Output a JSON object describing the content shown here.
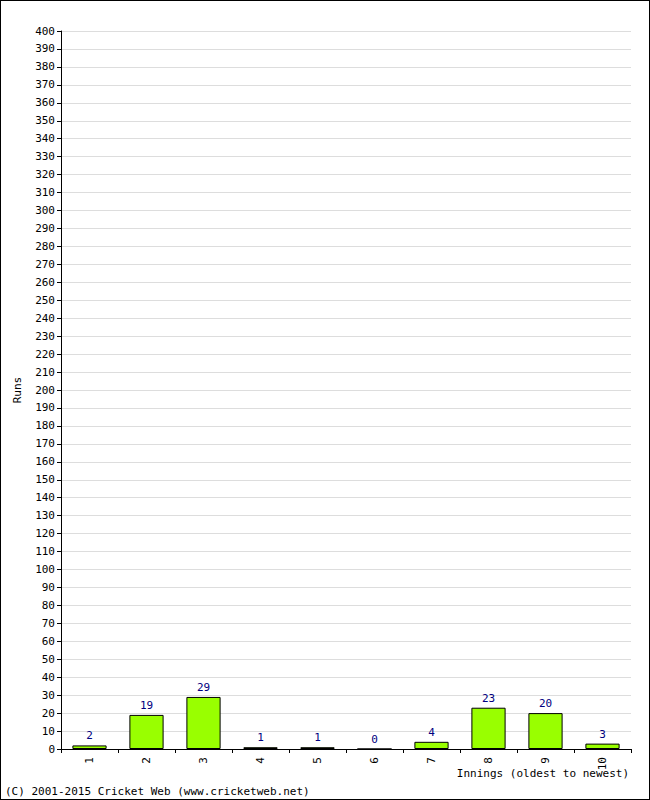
{
  "chart_data": {
    "type": "bar",
    "categories": [
      "1",
      "2",
      "3",
      "4",
      "5",
      "6",
      "7",
      "8",
      "9",
      "10"
    ],
    "values": [
      2,
      19,
      29,
      1,
      1,
      0,
      4,
      23,
      20,
      3
    ],
    "color": "#99ff00",
    "y_label": "Runs",
    "x_label": "Innings (oldest to newest)",
    "annotation": "(C) 2001-2015 Cricket Web (www.cricketweb.net)",
    "ylim": [
      0,
      400
    ],
    "yticks": [
      0,
      10,
      20,
      30,
      40,
      50,
      60,
      70,
      80,
      90,
      100,
      110,
      120,
      130,
      140,
      150,
      160,
      170,
      180,
      190,
      200,
      210,
      220,
      230,
      240,
      250,
      260,
      270,
      280,
      290,
      300,
      310,
      320,
      330,
      340,
      350,
      360,
      370,
      380,
      390,
      400
    ],
    "grid": true,
    "data_labels": true
  }
}
